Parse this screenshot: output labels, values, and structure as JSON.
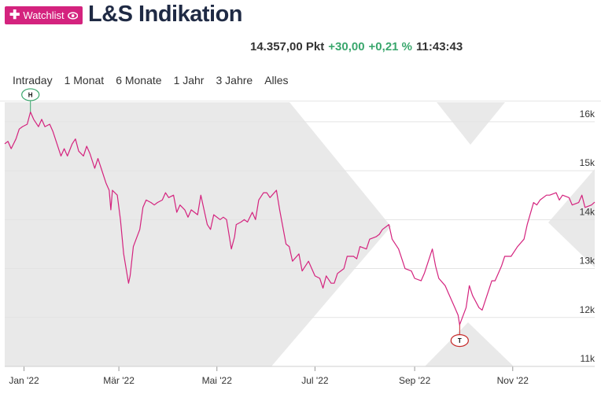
{
  "header": {
    "watchlist_label": "Watchlist",
    "title": "L&S Indikation"
  },
  "quote": {
    "price": "14.357,00 Pkt",
    "change_abs": "+30,00",
    "change_pct": "+0,21 %",
    "time": "11:43:43"
  },
  "colors": {
    "accent": "#d4237e",
    "positive": "#3aa76d",
    "line": "#d4237e",
    "background_pattern": "#e9e9e9"
  },
  "range_tabs": [
    "Intraday",
    "1 Monat",
    "6 Monate",
    "1 Jahr",
    "3 Jahre",
    "Alles"
  ],
  "chart_data": {
    "type": "line",
    "title": "",
    "xlabel": "",
    "ylabel": "",
    "x_ticks": [
      "Jan '22",
      "Mär '22",
      "Mai '22",
      "Jul '22",
      "Sep '22",
      "Nov '22"
    ],
    "y_ticks": [
      "11k",
      "12k",
      "13k",
      "14k",
      "15k",
      "16k"
    ],
    "y_tick_values": [
      11000,
      12000,
      13000,
      14000,
      15000,
      16000
    ],
    "ylim": [
      11000,
      16400
    ],
    "xlim": [
      "2021-12-20",
      "2022-12-22"
    ],
    "grid": "horizontal",
    "markers": [
      {
        "label": "H",
        "x": "2022-01-05",
        "y": 16200
      },
      {
        "label": "T",
        "x": "2022-09-29",
        "y": 11850
      }
    ],
    "series": [
      {
        "values": [
          [
            "2021-12-20",
            15550
          ],
          [
            "2021-12-22",
            15600
          ],
          [
            "2021-12-24",
            15450
          ],
          [
            "2021-12-27",
            15650
          ],
          [
            "2021-12-29",
            15850
          ],
          [
            "2021-12-31",
            15900
          ],
          [
            "2022-01-03",
            15950
          ],
          [
            "2022-01-05",
            16200
          ],
          [
            "2022-01-07",
            16050
          ],
          [
            "2022-01-10",
            15900
          ],
          [
            "2022-01-12",
            16050
          ],
          [
            "2022-01-14",
            15900
          ],
          [
            "2022-01-17",
            15950
          ],
          [
            "2022-01-19",
            15800
          ],
          [
            "2022-01-21",
            15600
          ],
          [
            "2022-01-24",
            15300
          ],
          [
            "2022-01-26",
            15450
          ],
          [
            "2022-01-28",
            15300
          ],
          [
            "2022-01-31",
            15550
          ],
          [
            "2022-02-02",
            15650
          ],
          [
            "2022-02-04",
            15400
          ],
          [
            "2022-02-07",
            15300
          ],
          [
            "2022-02-09",
            15500
          ],
          [
            "2022-02-11",
            15350
          ],
          [
            "2022-02-14",
            15050
          ],
          [
            "2022-02-16",
            15250
          ],
          [
            "2022-02-18",
            15050
          ],
          [
            "2022-02-21",
            14750
          ],
          [
            "2022-02-23",
            14600
          ],
          [
            "2022-02-24",
            14200
          ],
          [
            "2022-02-25",
            14600
          ],
          [
            "2022-02-28",
            14500
          ],
          [
            "2022-03-02",
            14000
          ],
          [
            "2022-03-04",
            13300
          ],
          [
            "2022-03-07",
            12700
          ],
          [
            "2022-03-08",
            12850
          ],
          [
            "2022-03-10",
            13450
          ],
          [
            "2022-03-14",
            13800
          ],
          [
            "2022-03-16",
            14250
          ],
          [
            "2022-03-18",
            14400
          ],
          [
            "2022-03-21",
            14350
          ],
          [
            "2022-03-23",
            14300
          ],
          [
            "2022-03-25",
            14350
          ],
          [
            "2022-03-28",
            14400
          ],
          [
            "2022-03-30",
            14550
          ],
          [
            "2022-04-01",
            14450
          ],
          [
            "2022-04-04",
            14500
          ],
          [
            "2022-04-06",
            14150
          ],
          [
            "2022-04-08",
            14300
          ],
          [
            "2022-04-11",
            14200
          ],
          [
            "2022-04-13",
            14050
          ],
          [
            "2022-04-15",
            14200
          ],
          [
            "2022-04-19",
            14100
          ],
          [
            "2022-04-21",
            14500
          ],
          [
            "2022-04-25",
            13900
          ],
          [
            "2022-04-27",
            13800
          ],
          [
            "2022-04-29",
            14100
          ],
          [
            "2022-05-03",
            14000
          ],
          [
            "2022-05-05",
            14050
          ],
          [
            "2022-05-07",
            14000
          ],
          [
            "2022-05-10",
            13400
          ],
          [
            "2022-05-12",
            13650
          ],
          [
            "2022-05-13",
            13900
          ],
          [
            "2022-05-16",
            13950
          ],
          [
            "2022-05-18",
            14000
          ],
          [
            "2022-05-20",
            13950
          ],
          [
            "2022-05-23",
            14150
          ],
          [
            "2022-05-25",
            14000
          ],
          [
            "2022-05-27",
            14400
          ],
          [
            "2022-05-30",
            14550
          ],
          [
            "2022-06-01",
            14550
          ],
          [
            "2022-06-03",
            14450
          ],
          [
            "2022-06-07",
            14600
          ],
          [
            "2022-06-09",
            14200
          ],
          [
            "2022-06-13",
            13500
          ],
          [
            "2022-06-15",
            13450
          ],
          [
            "2022-06-17",
            13150
          ],
          [
            "2022-06-21",
            13300
          ],
          [
            "2022-06-23",
            12950
          ],
          [
            "2022-06-27",
            13150
          ],
          [
            "2022-06-29",
            13000
          ],
          [
            "2022-07-01",
            12850
          ],
          [
            "2022-07-04",
            12800
          ],
          [
            "2022-07-06",
            12600
          ],
          [
            "2022-07-08",
            12850
          ],
          [
            "2022-07-11",
            12700
          ],
          [
            "2022-07-13",
            12700
          ],
          [
            "2022-07-15",
            12900
          ],
          [
            "2022-07-19",
            13000
          ],
          [
            "2022-07-21",
            13250
          ],
          [
            "2022-07-25",
            13250
          ],
          [
            "2022-07-27",
            13200
          ],
          [
            "2022-07-29",
            13450
          ],
          [
            "2022-08-02",
            13400
          ],
          [
            "2022-08-04",
            13600
          ],
          [
            "2022-08-08",
            13650
          ],
          [
            "2022-08-10",
            13700
          ],
          [
            "2022-08-12",
            13800
          ],
          [
            "2022-08-16",
            13900
          ],
          [
            "2022-08-18",
            13600
          ],
          [
            "2022-08-22",
            13400
          ],
          [
            "2022-08-24",
            13200
          ],
          [
            "2022-08-26",
            13000
          ],
          [
            "2022-08-30",
            12950
          ],
          [
            "2022-09-01",
            12800
          ],
          [
            "2022-09-05",
            12750
          ],
          [
            "2022-09-07",
            12900
          ],
          [
            "2022-09-09",
            13100
          ],
          [
            "2022-09-12",
            13400
          ],
          [
            "2022-09-14",
            13050
          ],
          [
            "2022-09-16",
            12800
          ],
          [
            "2022-09-20",
            12650
          ],
          [
            "2022-09-22",
            12500
          ],
          [
            "2022-09-26",
            12200
          ],
          [
            "2022-09-28",
            12050
          ],
          [
            "2022-09-29",
            11850
          ],
          [
            "2022-10-03",
            12200
          ],
          [
            "2022-10-05",
            12650
          ],
          [
            "2022-10-07",
            12450
          ],
          [
            "2022-10-11",
            12200
          ],
          [
            "2022-10-13",
            12150
          ],
          [
            "2022-10-17",
            12550
          ],
          [
            "2022-10-19",
            12750
          ],
          [
            "2022-10-21",
            12750
          ],
          [
            "2022-10-25",
            13050
          ],
          [
            "2022-10-27",
            13250
          ],
          [
            "2022-10-31",
            13250
          ],
          [
            "2022-11-02",
            13350
          ],
          [
            "2022-11-04",
            13450
          ],
          [
            "2022-11-08",
            13600
          ],
          [
            "2022-11-10",
            13900
          ],
          [
            "2022-11-14",
            14350
          ],
          [
            "2022-11-16",
            14300
          ],
          [
            "2022-11-18",
            14400
          ],
          [
            "2022-11-22",
            14500
          ],
          [
            "2022-11-24",
            14500
          ],
          [
            "2022-11-28",
            14550
          ],
          [
            "2022-11-30",
            14400
          ],
          [
            "2022-12-02",
            14500
          ],
          [
            "2022-12-06",
            14450
          ],
          [
            "2022-12-08",
            14300
          ],
          [
            "2022-12-12",
            14350
          ],
          [
            "2022-12-14",
            14500
          ],
          [
            "2022-12-16",
            14250
          ],
          [
            "2022-12-20",
            14300
          ],
          [
            "2022-12-22",
            14357
          ]
        ]
      }
    ]
  }
}
